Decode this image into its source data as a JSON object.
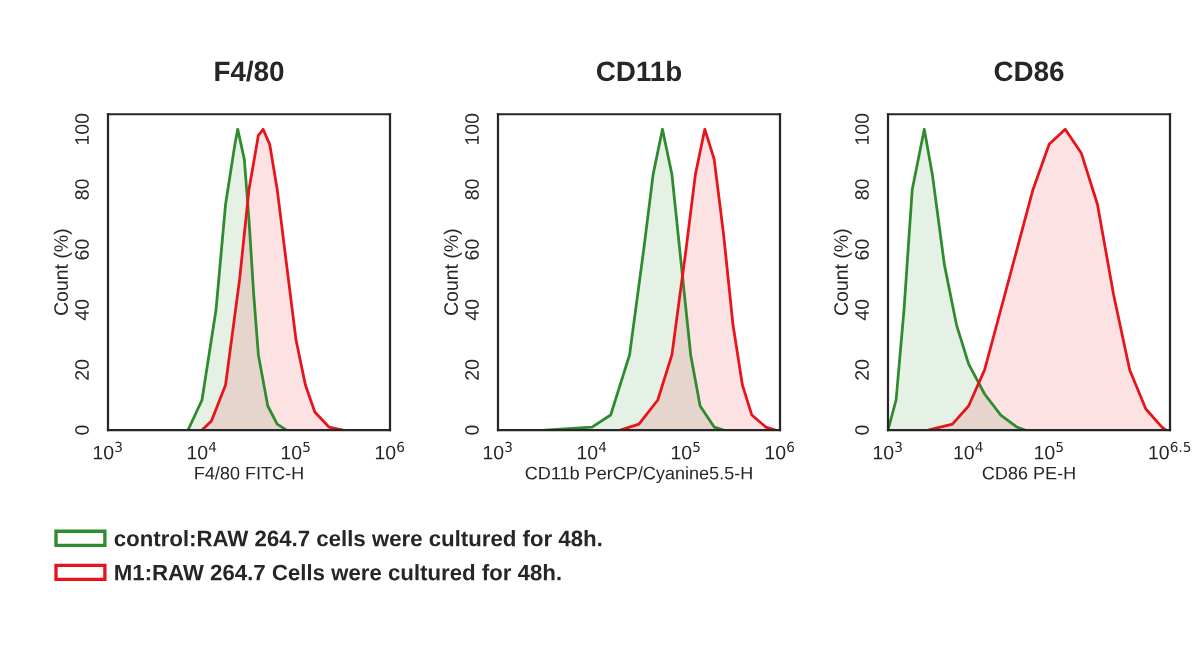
{
  "chart_data": [
    {
      "type": "area",
      "title": "F4/80",
      "xlabel": "F4/80 FITC-H",
      "ylabel": "Count (%)",
      "log": "x",
      "xlim": [
        1000,
        1000000
      ],
      "xticks": [
        {
          "value": 1000,
          "label": "10$^{3}$"
        },
        {
          "value": 10000,
          "label": "10$^{4}$"
        },
        {
          "value": 100000,
          "label": "10$^{5}$"
        },
        {
          "value": 1000000,
          "label": "10$^{6}$"
        }
      ],
      "ylim": [
        0,
        105
      ],
      "yticks": [
        0,
        20,
        40,
        60,
        80,
        100
      ],
      "grid": false,
      "legend": "bottom",
      "series": [
        {
          "name": "control:RAW 264.7 cells were cultured for 48h.",
          "color": "#2e8b2e",
          "x": [
            7100,
            10000,
            14100,
            17800,
            22400,
            24000,
            28200,
            31600,
            35500,
            39800,
            50100,
            63100,
            79400
          ],
          "values": [
            0,
            10,
            40,
            75,
            95,
            100,
            90,
            70,
            45,
            25,
            8,
            2,
            0
          ]
        },
        {
          "name": "M1:RAW 264.7 Cells were cultured for 48h.",
          "color": "#e8141b",
          "x": [
            10000,
            12600,
            17800,
            25100,
            31600,
            39800,
            44700,
            52500,
            63100,
            79400,
            100000,
            125900,
            158500,
            223900,
            316200
          ],
          "values": [
            0,
            3,
            15,
            50,
            80,
            98,
            100,
            95,
            80,
            55,
            30,
            15,
            6,
            1,
            0
          ]
        }
      ]
    },
    {
      "type": "area",
      "title": "CD11b",
      "xlabel": "CD11b PerCP/Cyanine5.5-H",
      "ylabel": "Count (%)",
      "log": "x",
      "xlim": [
        1000,
        1000000
      ],
      "xticks": [
        {
          "value": 1000,
          "label": "10$^{3}$"
        },
        {
          "value": 10000,
          "label": "10$^{4}$"
        },
        {
          "value": 100000,
          "label": "10$^{5}$"
        },
        {
          "value": 1000000,
          "label": "10$^{6}$"
        }
      ],
      "ylim": [
        0,
        105
      ],
      "yticks": [
        0,
        20,
        40,
        60,
        80,
        100
      ],
      "grid": false,
      "series": [
        {
          "color": "#2e8b2e",
          "x": [
            3200,
            10000,
            15800,
            25100,
            35500,
            44700,
            56200,
            70800,
            89100,
            112200,
            141300,
            199500,
            251200
          ],
          "values": [
            0,
            1,
            5,
            25,
            60,
            85,
            100,
            85,
            55,
            25,
            8,
            1,
            0
          ]
        },
        {
          "color": "#e8141b",
          "x": [
            20000,
            31600,
            50100,
            70800,
            100000,
            125900,
            158500,
            199500,
            251200,
            316200,
            398100,
            501200,
            707900,
            891300
          ],
          "values": [
            0,
            2,
            10,
            25,
            60,
            85,
            100,
            90,
            65,
            35,
            15,
            5,
            1,
            0
          ]
        }
      ]
    },
    {
      "type": "area",
      "title": "CD86",
      "xlabel": "CD86 PE-H",
      "ylabel": "Count (%)",
      "log": "x",
      "xlim": [
        1000,
        3162278
      ],
      "xticks": [
        {
          "value": 1000,
          "label": "10$^{3}$"
        },
        {
          "value": 10000,
          "label": "10$^{4}$"
        },
        {
          "value": 100000,
          "label": "10$^{5}$"
        },
        {
          "value": 3162278,
          "label": "10$^{6.5}$"
        }
      ],
      "ylim": [
        0,
        105
      ],
      "yticks": [
        0,
        20,
        40,
        60,
        80,
        100
      ],
      "grid": false,
      "series": [
        {
          "color": "#2e8b2e",
          "x": [
            1000,
            1260,
            1580,
            2000,
            2820,
            3550,
            5010,
            7080,
            10000,
            15800,
            25100,
            39800,
            50100
          ],
          "values": [
            0,
            10,
            40,
            80,
            100,
            85,
            55,
            35,
            22,
            12,
            5,
            1,
            0
          ]
        },
        {
          "color": "#e8141b",
          "x": [
            3160,
            6310,
            10000,
            15800,
            25100,
            39800,
            63100,
            100000,
            158500,
            251200,
            398100,
            631000,
            1000000,
            1584900,
            2511900,
            2818400
          ],
          "values": [
            0,
            2,
            8,
            20,
            40,
            60,
            80,
            95,
            100,
            92,
            75,
            45,
            20,
            7,
            1,
            0
          ]
        }
      ]
    }
  ]
}
